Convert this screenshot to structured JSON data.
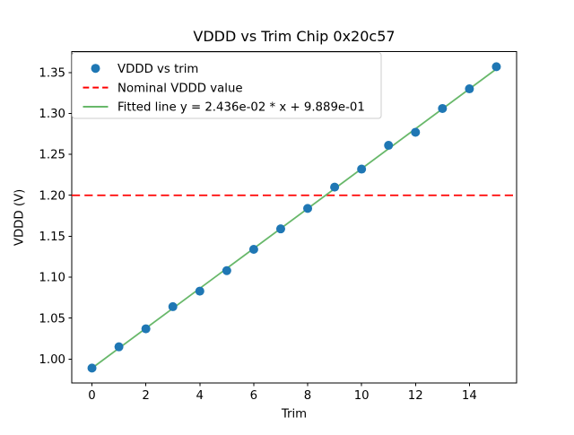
{
  "figure": {
    "background": "#ffffff"
  },
  "chart_data": {
    "type": "scatter",
    "title": "VDDD vs Trim Chip 0x20c57",
    "xlabel": "Trim",
    "ylabel": "VDDD (V)",
    "x": [
      0,
      1,
      2,
      3,
      4,
      5,
      6,
      7,
      8,
      9,
      10,
      11,
      12,
      13,
      14,
      15
    ],
    "y": [
      0.989,
      1.015,
      1.037,
      1.064,
      1.083,
      1.108,
      1.134,
      1.159,
      1.184,
      1.21,
      1.232,
      1.261,
      1.277,
      1.306,
      1.33,
      1.357
    ],
    "xlim": [
      -0.75,
      15.75
    ],
    "ylim": [
      0.9706,
      1.3754
    ],
    "xticks": [
      0,
      2,
      4,
      6,
      8,
      10,
      12,
      14
    ],
    "yticks": [
      1.0,
      1.05,
      1.1,
      1.15,
      1.2,
      1.25,
      1.3,
      1.35
    ],
    "grid": false,
    "legend_position": "upper left",
    "series": [
      {
        "name": "VDDD vs trim",
        "kind": "scatter",
        "color": "#1f77b4"
      },
      {
        "name": "Nominal VDDD value",
        "kind": "hline",
        "y": 1.2,
        "color": "#ff0000",
        "dashed": true
      },
      {
        "name": "Fitted line y = 2.436e-02 * x + 9.889e-01",
        "kind": "fitline",
        "slope": 0.02436,
        "intercept": 0.9889,
        "color": "#68b86a"
      }
    ]
  }
}
